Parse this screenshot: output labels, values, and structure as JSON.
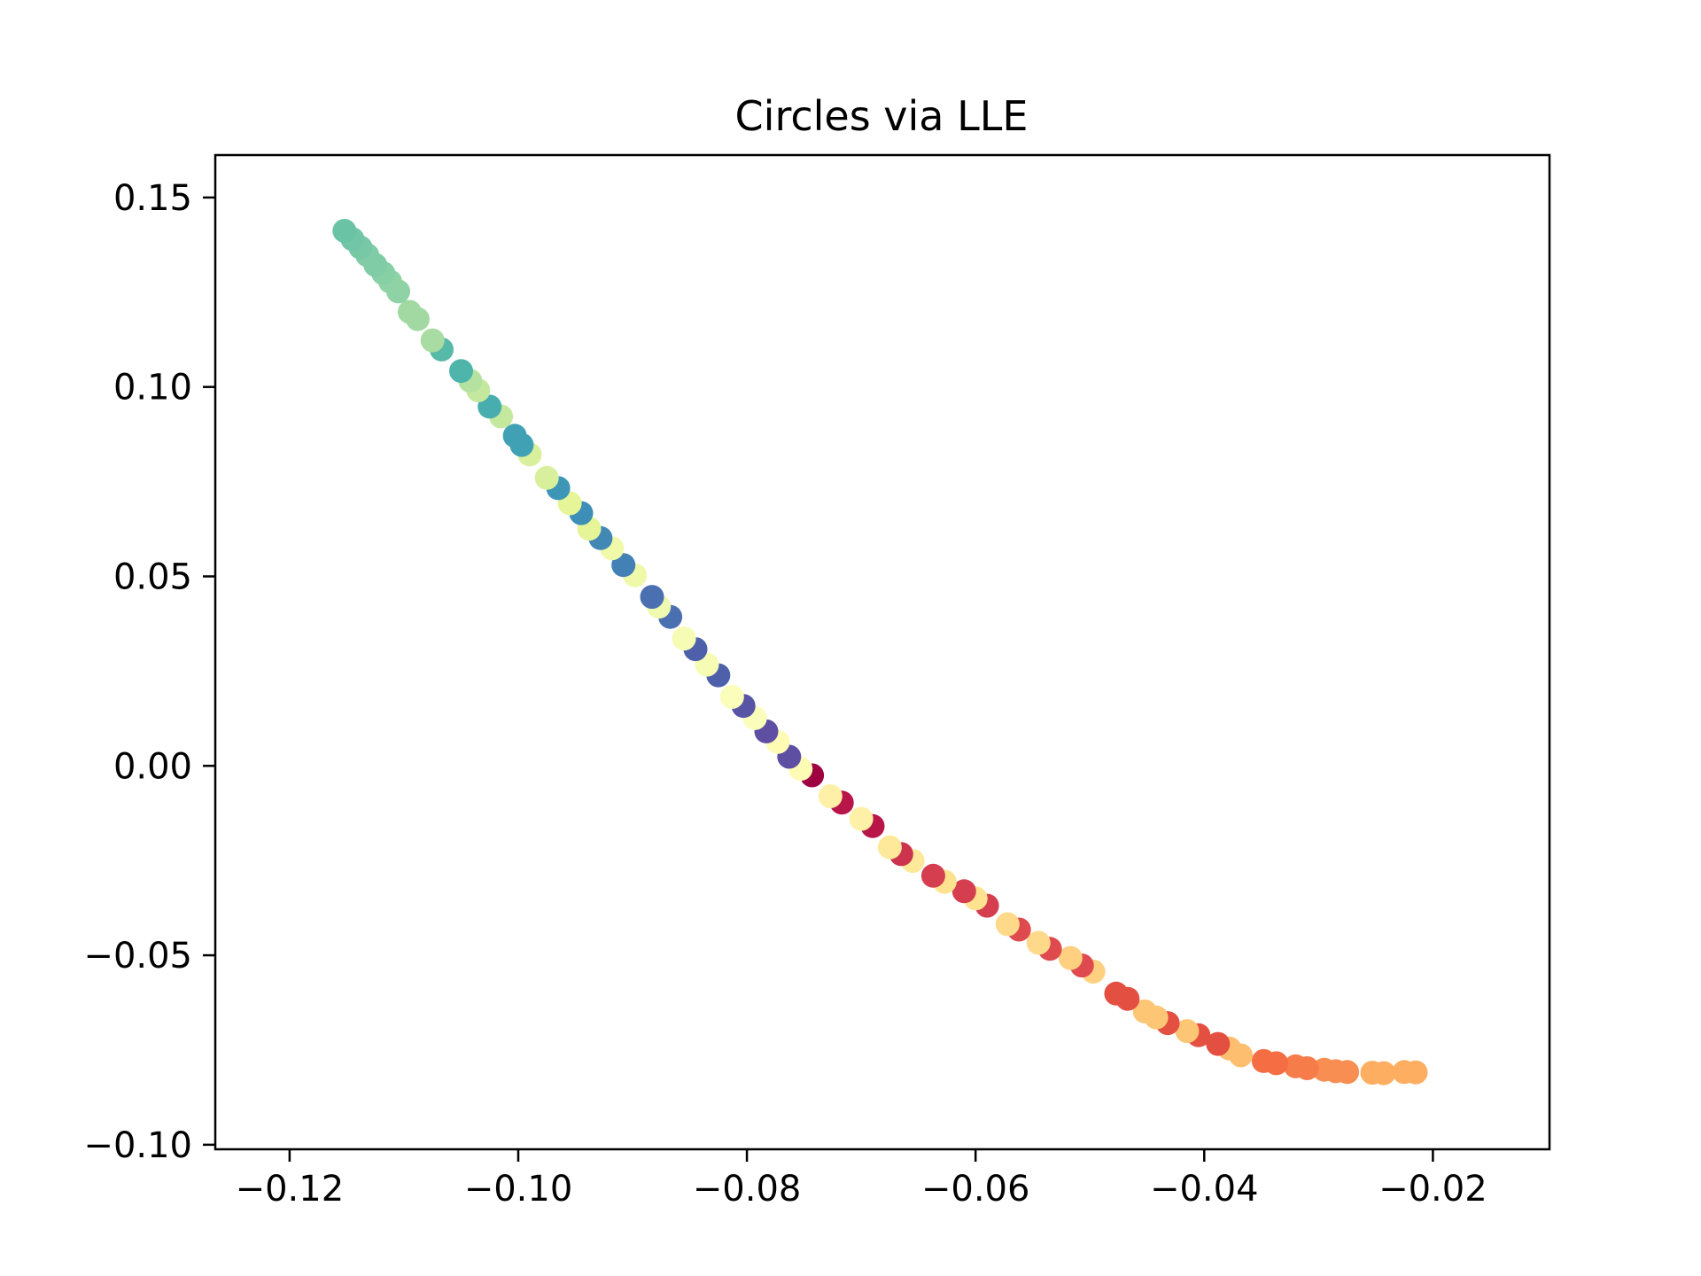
{
  "chart_data": {
    "type": "scatter",
    "title": "Circles via LLE",
    "xlabel": "",
    "ylabel": "",
    "xlim": [
      -0.1265,
      -0.0098
    ],
    "ylim": [
      -0.1012,
      0.1612
    ],
    "x_ticks": [
      {
        "value": -0.12,
        "label": "−0.12"
      },
      {
        "value": -0.1,
        "label": "−0.10"
      },
      {
        "value": -0.08,
        "label": "−0.08"
      },
      {
        "value": -0.06,
        "label": "−0.06"
      },
      {
        "value": -0.04,
        "label": "−0.04"
      },
      {
        "value": -0.02,
        "label": "−0.02"
      }
    ],
    "y_ticks": [
      {
        "value": 0.15,
        "label": "0.15"
      },
      {
        "value": 0.1,
        "label": "0.10"
      },
      {
        "value": 0.05,
        "label": "0.05"
      },
      {
        "value": 0.0,
        "label": "0.00"
      },
      {
        "value": -0.05,
        "label": "−0.05"
      },
      {
        "value": -0.1,
        "label": "−0.10"
      }
    ],
    "grid": false,
    "legend": "none",
    "points": [
      {
        "x": -0.0215,
        "y": -0.0809,
        "color": "#fdae61"
      },
      {
        "x": -0.0225,
        "y": -0.0808,
        "color": "#fdae61"
      },
      {
        "x": -0.0243,
        "y": -0.0811,
        "color": "#fdae61"
      },
      {
        "x": -0.0253,
        "y": -0.081,
        "color": "#fdae61"
      },
      {
        "x": -0.0275,
        "y": -0.0808,
        "color": "#f98e52"
      },
      {
        "x": -0.0285,
        "y": -0.0806,
        "color": "#f98e52"
      },
      {
        "x": -0.0295,
        "y": -0.0802,
        "color": "#f98e52"
      },
      {
        "x": -0.031,
        "y": -0.0798,
        "color": "#f67c4a"
      },
      {
        "x": -0.032,
        "y": -0.0793,
        "color": "#f67c4a"
      },
      {
        "x": -0.0337,
        "y": -0.0785,
        "color": "#f46d43"
      },
      {
        "x": -0.0348,
        "y": -0.0779,
        "color": "#f46d43"
      },
      {
        "x": -0.0368,
        "y": -0.0764,
        "color": "#fdbf6f"
      },
      {
        "x": -0.0378,
        "y": -0.0746,
        "color": "#fdbf6f"
      },
      {
        "x": -0.0388,
        "y": -0.0734,
        "color": "#e34f40"
      },
      {
        "x": -0.0405,
        "y": -0.0711,
        "color": "#e34f40"
      },
      {
        "x": -0.0415,
        "y": -0.07,
        "color": "#fdc675"
      },
      {
        "x": -0.0432,
        "y": -0.0679,
        "color": "#e34f40"
      },
      {
        "x": -0.0442,
        "y": -0.0664,
        "color": "#fdc675"
      },
      {
        "x": -0.0452,
        "y": -0.0648,
        "color": "#fdc675"
      },
      {
        "x": -0.0467,
        "y": -0.0615,
        "color": "#e34f40"
      },
      {
        "x": -0.0477,
        "y": -0.0601,
        "color": "#e34f40"
      },
      {
        "x": -0.0497,
        "y": -0.0543,
        "color": "#fed080"
      },
      {
        "x": -0.0507,
        "y": -0.0527,
        "color": "#df4a4e"
      },
      {
        "x": -0.0517,
        "y": -0.0507,
        "color": "#fed080"
      },
      {
        "x": -0.0535,
        "y": -0.0483,
        "color": "#df4a4e"
      },
      {
        "x": -0.0545,
        "y": -0.0467,
        "color": "#fed98a"
      },
      {
        "x": -0.0562,
        "y": -0.0432,
        "color": "#df4a4e"
      },
      {
        "x": -0.0572,
        "y": -0.0418,
        "color": "#fed98a"
      },
      {
        "x": -0.059,
        "y": -0.0369,
        "color": "#d53e4f"
      },
      {
        "x": -0.06,
        "y": -0.035,
        "color": "#fee290"
      },
      {
        "x": -0.061,
        "y": -0.0331,
        "color": "#d53e4f"
      },
      {
        "x": -0.0627,
        "y": -0.0306,
        "color": "#fee290"
      },
      {
        "x": -0.0637,
        "y": -0.029,
        "color": "#d53e4f"
      },
      {
        "x": -0.0655,
        "y": -0.0251,
        "color": "#fee99a"
      },
      {
        "x": -0.0665,
        "y": -0.0233,
        "color": "#cc334c"
      },
      {
        "x": -0.0675,
        "y": -0.0215,
        "color": "#fee99a"
      },
      {
        "x": -0.069,
        "y": -0.0159,
        "color": "#b81648"
      },
      {
        "x": -0.07,
        "y": -0.014,
        "color": "#fef0a6"
      },
      {
        "x": -0.0717,
        "y": -0.0097,
        "color": "#b81648"
      },
      {
        "x": -0.0727,
        "y": -0.008,
        "color": "#fef0a6"
      },
      {
        "x": -0.0743,
        "y": -0.0025,
        "color": "#9e0142"
      },
      {
        "x": -0.0753,
        "y": -0.0008,
        "color": "#fefbb5"
      },
      {
        "x": -0.0763,
        "y": 0.0024,
        "color": "#5e4fa2"
      },
      {
        "x": -0.0773,
        "y": 0.0063,
        "color": "#fefbb5"
      },
      {
        "x": -0.0783,
        "y": 0.0091,
        "color": "#5e4fa2"
      },
      {
        "x": -0.0793,
        "y": 0.0126,
        "color": "#fbfdba"
      },
      {
        "x": -0.0803,
        "y": 0.0158,
        "color": "#5955a5"
      },
      {
        "x": -0.0813,
        "y": 0.0182,
        "color": "#fbfdba"
      },
      {
        "x": -0.0825,
        "y": 0.0239,
        "color": "#4f60aa"
      },
      {
        "x": -0.0835,
        "y": 0.0267,
        "color": "#f7fcb4"
      },
      {
        "x": -0.0845,
        "y": 0.0308,
        "color": "#4f60aa"
      },
      {
        "x": -0.0855,
        "y": 0.0336,
        "color": "#f7fcb4"
      },
      {
        "x": -0.0867,
        "y": 0.0393,
        "color": "#4a70b1"
      },
      {
        "x": -0.0877,
        "y": 0.042,
        "color": "#f0f9b0"
      },
      {
        "x": -0.0883,
        "y": 0.0446,
        "color": "#4a70b1"
      },
      {
        "x": -0.0898,
        "y": 0.0503,
        "color": "#eff9a9"
      },
      {
        "x": -0.0908,
        "y": 0.053,
        "color": "#4280b6"
      },
      {
        "x": -0.0918,
        "y": 0.0574,
        "color": "#eff9a9"
      },
      {
        "x": -0.0928,
        "y": 0.0601,
        "color": "#4288b5"
      },
      {
        "x": -0.0938,
        "y": 0.0626,
        "color": "#e6f598"
      },
      {
        "x": -0.0945,
        "y": 0.0667,
        "color": "#3e8fb8"
      },
      {
        "x": -0.0955,
        "y": 0.0693,
        "color": "#e6f598"
      },
      {
        "x": -0.0965,
        "y": 0.0733,
        "color": "#3e96b7"
      },
      {
        "x": -0.0975,
        "y": 0.076,
        "color": "#d8ef9b"
      },
      {
        "x": -0.099,
        "y": 0.0822,
        "color": "#d8ef9b"
      },
      {
        "x": -0.0997,
        "y": 0.0847,
        "color": "#41a1b4"
      },
      {
        "x": -0.1003,
        "y": 0.0871,
        "color": "#41a1b4"
      },
      {
        "x": -0.1015,
        "y": 0.0922,
        "color": "#c4e89e"
      },
      {
        "x": -0.1025,
        "y": 0.0948,
        "color": "#48adae"
      },
      {
        "x": -0.1035,
        "y": 0.0991,
        "color": "#c4e89e"
      },
      {
        "x": -0.1042,
        "y": 0.1016,
        "color": "#b5e2a0"
      },
      {
        "x": -0.105,
        "y": 0.1042,
        "color": "#4fb5aa"
      },
      {
        "x": -0.1067,
        "y": 0.1099,
        "color": "#57b9a8"
      },
      {
        "x": -0.1075,
        "y": 0.1123,
        "color": "#a9dca2"
      },
      {
        "x": -0.1088,
        "y": 0.1179,
        "color": "#a2d9a3"
      },
      {
        "x": -0.1095,
        "y": 0.1198,
        "color": "#a2d9a3"
      },
      {
        "x": -0.1105,
        "y": 0.1252,
        "color": "#8fd2a5"
      },
      {
        "x": -0.1112,
        "y": 0.1278,
        "color": "#8fd2a5"
      },
      {
        "x": -0.1118,
        "y": 0.13,
        "color": "#87cfa5"
      },
      {
        "x": -0.1125,
        "y": 0.1322,
        "color": "#7fcca6"
      },
      {
        "x": -0.1132,
        "y": 0.1348,
        "color": "#7fcca6"
      },
      {
        "x": -0.1138,
        "y": 0.1368,
        "color": "#78c8a6"
      },
      {
        "x": -0.1145,
        "y": 0.139,
        "color": "#72c5a6"
      },
      {
        "x": -0.1152,
        "y": 0.1412,
        "color": "#6bc3a6"
      }
    ]
  }
}
